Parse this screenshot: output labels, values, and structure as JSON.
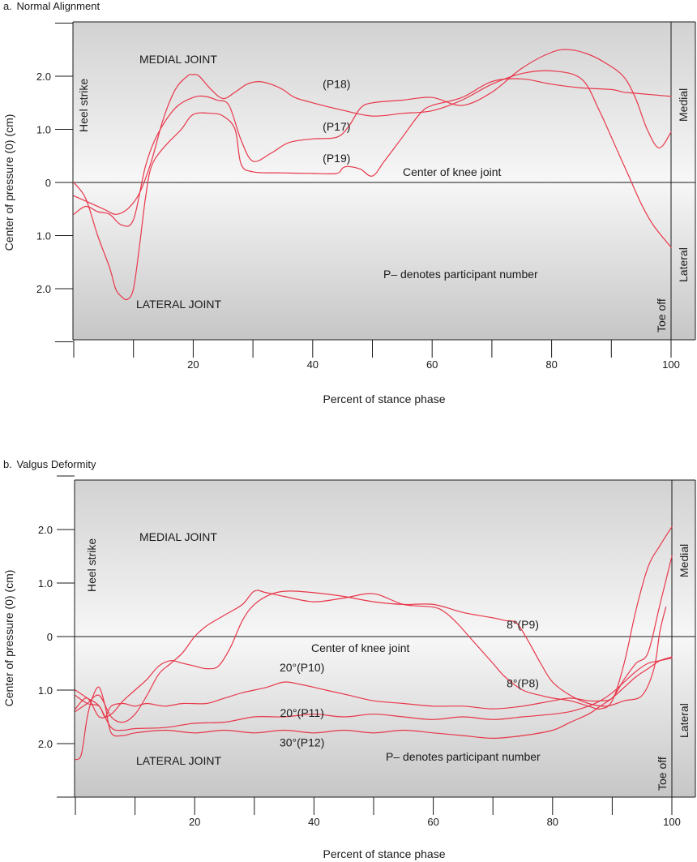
{
  "figure": {
    "line_color": "#e8374a",
    "background_gradient": [
      "#d2d2d2",
      "#f7f7f7",
      "#c6c6c6"
    ],
    "axis_color": "#1a1a1a"
  },
  "chart_data": [
    {
      "type": "line",
      "panel_label": "a.",
      "title": "Normal Alignment",
      "xlabel": "Percent of stance phase",
      "ylabel": "Center of pressure (0) (cm)",
      "xlim": [
        0,
        100
      ],
      "ylim": [
        -3.0,
        3.0
      ],
      "x_ticks": [
        20,
        40,
        60,
        80,
        100
      ],
      "y_ticks": [
        {
          "value": 2.0,
          "label": "2.0"
        },
        {
          "value": 1.0,
          "label": "1.0"
        },
        {
          "value": 0,
          "label": "0"
        },
        {
          "value": -1.0,
          "label": "1.0"
        },
        {
          "value": -2.0,
          "label": "2.0"
        }
      ],
      "annotations": {
        "heel_strike": "Heel strike",
        "toe_off": "Toe off",
        "medial": "Medial",
        "lateral": "Lateral",
        "medial_joint": "MEDIAL JOINT",
        "lateral_joint": "LATERAL JOINT",
        "center_line": "Center of knee joint",
        "note": "P– denotes participant number"
      },
      "series": [
        {
          "name": "(P18)",
          "x": [
            0,
            2,
            5,
            7,
            9,
            11,
            13,
            15,
            17,
            19,
            20,
            21,
            23,
            25,
            27,
            29,
            31,
            33,
            35,
            37,
            40,
            45,
            50,
            55,
            60,
            65,
            70,
            75,
            80,
            85,
            88,
            91,
            93,
            95,
            97,
            100
          ],
          "y": [
            -0.25,
            -0.35,
            -0.5,
            -0.6,
            -0.5,
            -0.2,
            0.4,
            1.2,
            1.75,
            2.0,
            2.03,
            2.0,
            1.75,
            1.58,
            1.7,
            1.85,
            1.9,
            1.85,
            1.75,
            1.6,
            1.5,
            1.36,
            1.25,
            1.3,
            1.35,
            1.55,
            1.85,
            2.05,
            2.1,
            1.95,
            1.35,
            0.6,
            0.1,
            -0.4,
            -0.8,
            -1.22
          ]
        },
        {
          "name": "(P17)",
          "x": [
            0,
            2,
            4,
            6,
            8,
            10,
            12,
            14,
            17,
            20,
            22,
            24,
            26,
            28,
            30,
            33,
            36,
            40,
            44,
            46,
            48,
            50,
            55,
            60,
            65,
            70,
            75,
            80,
            83,
            86,
            89,
            92,
            94,
            96,
            98,
            100
          ],
          "y": [
            -0.6,
            -0.45,
            -0.55,
            -0.6,
            -0.8,
            -0.7,
            0.3,
            0.9,
            1.4,
            1.6,
            1.62,
            1.55,
            1.45,
            0.8,
            0.4,
            0.55,
            0.75,
            0.82,
            0.85,
            1.05,
            1.4,
            1.5,
            1.55,
            1.6,
            1.45,
            1.7,
            2.15,
            2.45,
            2.5,
            2.42,
            2.25,
            2.0,
            1.6,
            1.0,
            0.65,
            0.95
          ]
        },
        {
          "name": "(P19)",
          "x": [
            0,
            2,
            4,
            6,
            7,
            8,
            9,
            10,
            11,
            12,
            13,
            15,
            18,
            20,
            23,
            25,
            27,
            28,
            30,
            35,
            40,
            44,
            45,
            46,
            48,
            50,
            52,
            55,
            58,
            60,
            65,
            70,
            75,
            80,
            85,
            90,
            92,
            94,
            96,
            98,
            100
          ],
          "y": [
            0.0,
            -0.3,
            -1.0,
            -1.6,
            -2.0,
            -2.15,
            -2.2,
            -2.0,
            -1.2,
            -0.3,
            0.3,
            0.65,
            1.0,
            1.28,
            1.3,
            1.25,
            1.0,
            0.35,
            0.2,
            0.18,
            0.17,
            0.17,
            0.27,
            0.3,
            0.25,
            0.12,
            0.4,
            0.85,
            1.3,
            1.45,
            1.6,
            1.9,
            1.95,
            1.85,
            1.78,
            1.75,
            1.7,
            1.68,
            1.66,
            1.64,
            1.62
          ]
        }
      ],
      "series_labels": [
        {
          "text": "(P18)",
          "x": 44,
          "y": 1.78
        },
        {
          "text": "(P17)",
          "x": 44,
          "y": 0.98
        },
        {
          "text": "(P19)",
          "x": 44,
          "y": 0.38
        }
      ]
    },
    {
      "type": "line",
      "panel_label": "b.",
      "title": "Valgus Deformity",
      "xlabel": "Percent of stance phase",
      "ylabel": "Center of pressure (0) (cm)",
      "xlim": [
        0,
        100
      ],
      "ylim": [
        -3.0,
        3.0
      ],
      "x_ticks": [
        20,
        40,
        60,
        80,
        100
      ],
      "y_ticks": [
        {
          "value": 2.0,
          "label": "2.0"
        },
        {
          "value": 1.0,
          "label": "1.0"
        },
        {
          "value": 0,
          "label": "0"
        },
        {
          "value": -1.0,
          "label": "1.0"
        },
        {
          "value": -2.0,
          "label": "2.0"
        }
      ],
      "annotations": {
        "heel_strike": "Heel strike",
        "toe_off": "Toe off",
        "medial": "Medial",
        "lateral": "Lateral",
        "medial_joint": "MEDIAL JOINT",
        "lateral_joint": "LATERAL JOINT",
        "center_line": "Center of knee joint",
        "note": "P– denotes participant number"
      },
      "series": [
        {
          "name": "8°(P9)",
          "x": [
            0,
            2,
            4,
            6,
            8,
            10,
            12,
            14,
            16,
            18,
            20,
            22,
            24,
            26,
            28,
            30,
            33,
            36,
            40,
            45,
            50,
            55,
            60,
            65,
            70,
            72,
            74,
            76,
            78,
            80,
            83,
            86,
            89,
            92,
            95,
            97,
            98,
            99
          ],
          "y": [
            -1.35,
            -1.15,
            -1.5,
            -1.45,
            -1.2,
            -1.0,
            -0.8,
            -0.55,
            -0.45,
            -0.5,
            -0.55,
            -0.6,
            -0.55,
            -0.2,
            0.3,
            0.6,
            0.8,
            0.85,
            0.82,
            0.75,
            0.65,
            0.6,
            0.6,
            0.45,
            0.35,
            0.3,
            0.25,
            -0.1,
            -0.5,
            -0.85,
            -1.1,
            -1.25,
            -1.3,
            -1.2,
            -1.1,
            -0.6,
            0.1,
            0.55
          ]
        },
        {
          "name": "8°(P8)",
          "x": [
            0,
            2,
            4,
            6,
            8,
            10,
            12,
            14,
            16,
            18,
            20,
            22,
            25,
            28,
            30,
            32,
            35,
            40,
            45,
            50,
            55,
            60,
            62,
            64,
            66,
            68,
            70,
            72,
            75,
            78,
            80,
            83,
            86,
            88,
            90,
            92,
            94,
            96,
            98,
            100
          ],
          "y": [
            -1.4,
            -1.25,
            -1.1,
            -1.5,
            -1.6,
            -1.45,
            -1.1,
            -0.7,
            -0.5,
            -0.3,
            0.0,
            0.2,
            0.4,
            0.6,
            0.85,
            0.82,
            0.75,
            0.65,
            0.72,
            0.8,
            0.6,
            0.55,
            0.45,
            0.25,
            0.0,
            -0.25,
            -0.5,
            -0.75,
            -1.0,
            -1.1,
            -1.15,
            -1.2,
            -1.3,
            -1.35,
            -1.2,
            -0.5,
            0.5,
            1.3,
            1.7,
            2.05
          ]
        },
        {
          "name": "20°(P10)",
          "x": [
            0,
            2,
            4,
            5,
            6,
            8,
            10,
            12,
            15,
            18,
            22,
            25,
            28,
            32,
            35,
            38,
            42,
            46,
            50,
            55,
            60,
            65,
            70,
            75,
            80,
            83,
            86,
            88,
            90,
            92,
            94,
            96,
            98,
            100
          ],
          "y": [
            -1.1,
            -1.25,
            -1.3,
            -1.5,
            -1.3,
            -1.25,
            -1.3,
            -1.25,
            -1.3,
            -1.25,
            -1.25,
            -1.15,
            -1.05,
            -0.95,
            -0.85,
            -0.9,
            -1.0,
            -1.1,
            -1.2,
            -1.25,
            -1.3,
            -1.3,
            -1.35,
            -1.3,
            -1.2,
            -1.15,
            -1.2,
            -1.2,
            -1.15,
            -0.8,
            -0.5,
            -0.3,
            0.6,
            1.5
          ]
        },
        {
          "name": "20°(P11)",
          "x": [
            0,
            2,
            4,
            6,
            8,
            10,
            15,
            20,
            25,
            30,
            35,
            40,
            45,
            50,
            55,
            60,
            65,
            70,
            75,
            80,
            83,
            86,
            88,
            90,
            92,
            94,
            96,
            98,
            100
          ],
          "y": [
            -1.0,
            -1.15,
            -1.3,
            -1.7,
            -1.75,
            -1.72,
            -1.7,
            -1.62,
            -1.6,
            -1.5,
            -1.5,
            -1.45,
            -1.5,
            -1.45,
            -1.5,
            -1.55,
            -1.5,
            -1.55,
            -1.5,
            -1.45,
            -1.4,
            -1.3,
            -1.2,
            -1.05,
            -0.85,
            -0.65,
            -0.5,
            -0.45,
            -0.4
          ]
        },
        {
          "name": "30°(P12)",
          "x": [
            0,
            1,
            2,
            3,
            4,
            5,
            6,
            8,
            10,
            15,
            20,
            25,
            30,
            35,
            40,
            45,
            50,
            55,
            60,
            65,
            70,
            75,
            80,
            83,
            86,
            88,
            90,
            92,
            94,
            96,
            98,
            100
          ],
          "y": [
            -2.3,
            -2.2,
            -1.5,
            -1.1,
            -0.95,
            -1.3,
            -1.8,
            -1.85,
            -1.8,
            -1.75,
            -1.8,
            -1.75,
            -1.8,
            -1.75,
            -1.8,
            -1.75,
            -1.8,
            -1.75,
            -1.8,
            -1.85,
            -1.9,
            -1.85,
            -1.75,
            -1.6,
            -1.45,
            -1.3,
            -1.15,
            -0.95,
            -0.75,
            -0.6,
            -0.45,
            -0.38
          ]
        }
      ],
      "series_labels": [
        {
          "text": "8°(P9)",
          "x": 75,
          "y": 0.15
        },
        {
          "text": "8°(P8)",
          "x": 75,
          "y": -0.95
        },
        {
          "text": "20°(P10)",
          "x": 38,
          "y": -0.65
        },
        {
          "text": "20°(P11)",
          "x": 38,
          "y": -1.5
        },
        {
          "text": "30°(P12)",
          "x": 38,
          "y": -2.05
        }
      ]
    }
  ]
}
